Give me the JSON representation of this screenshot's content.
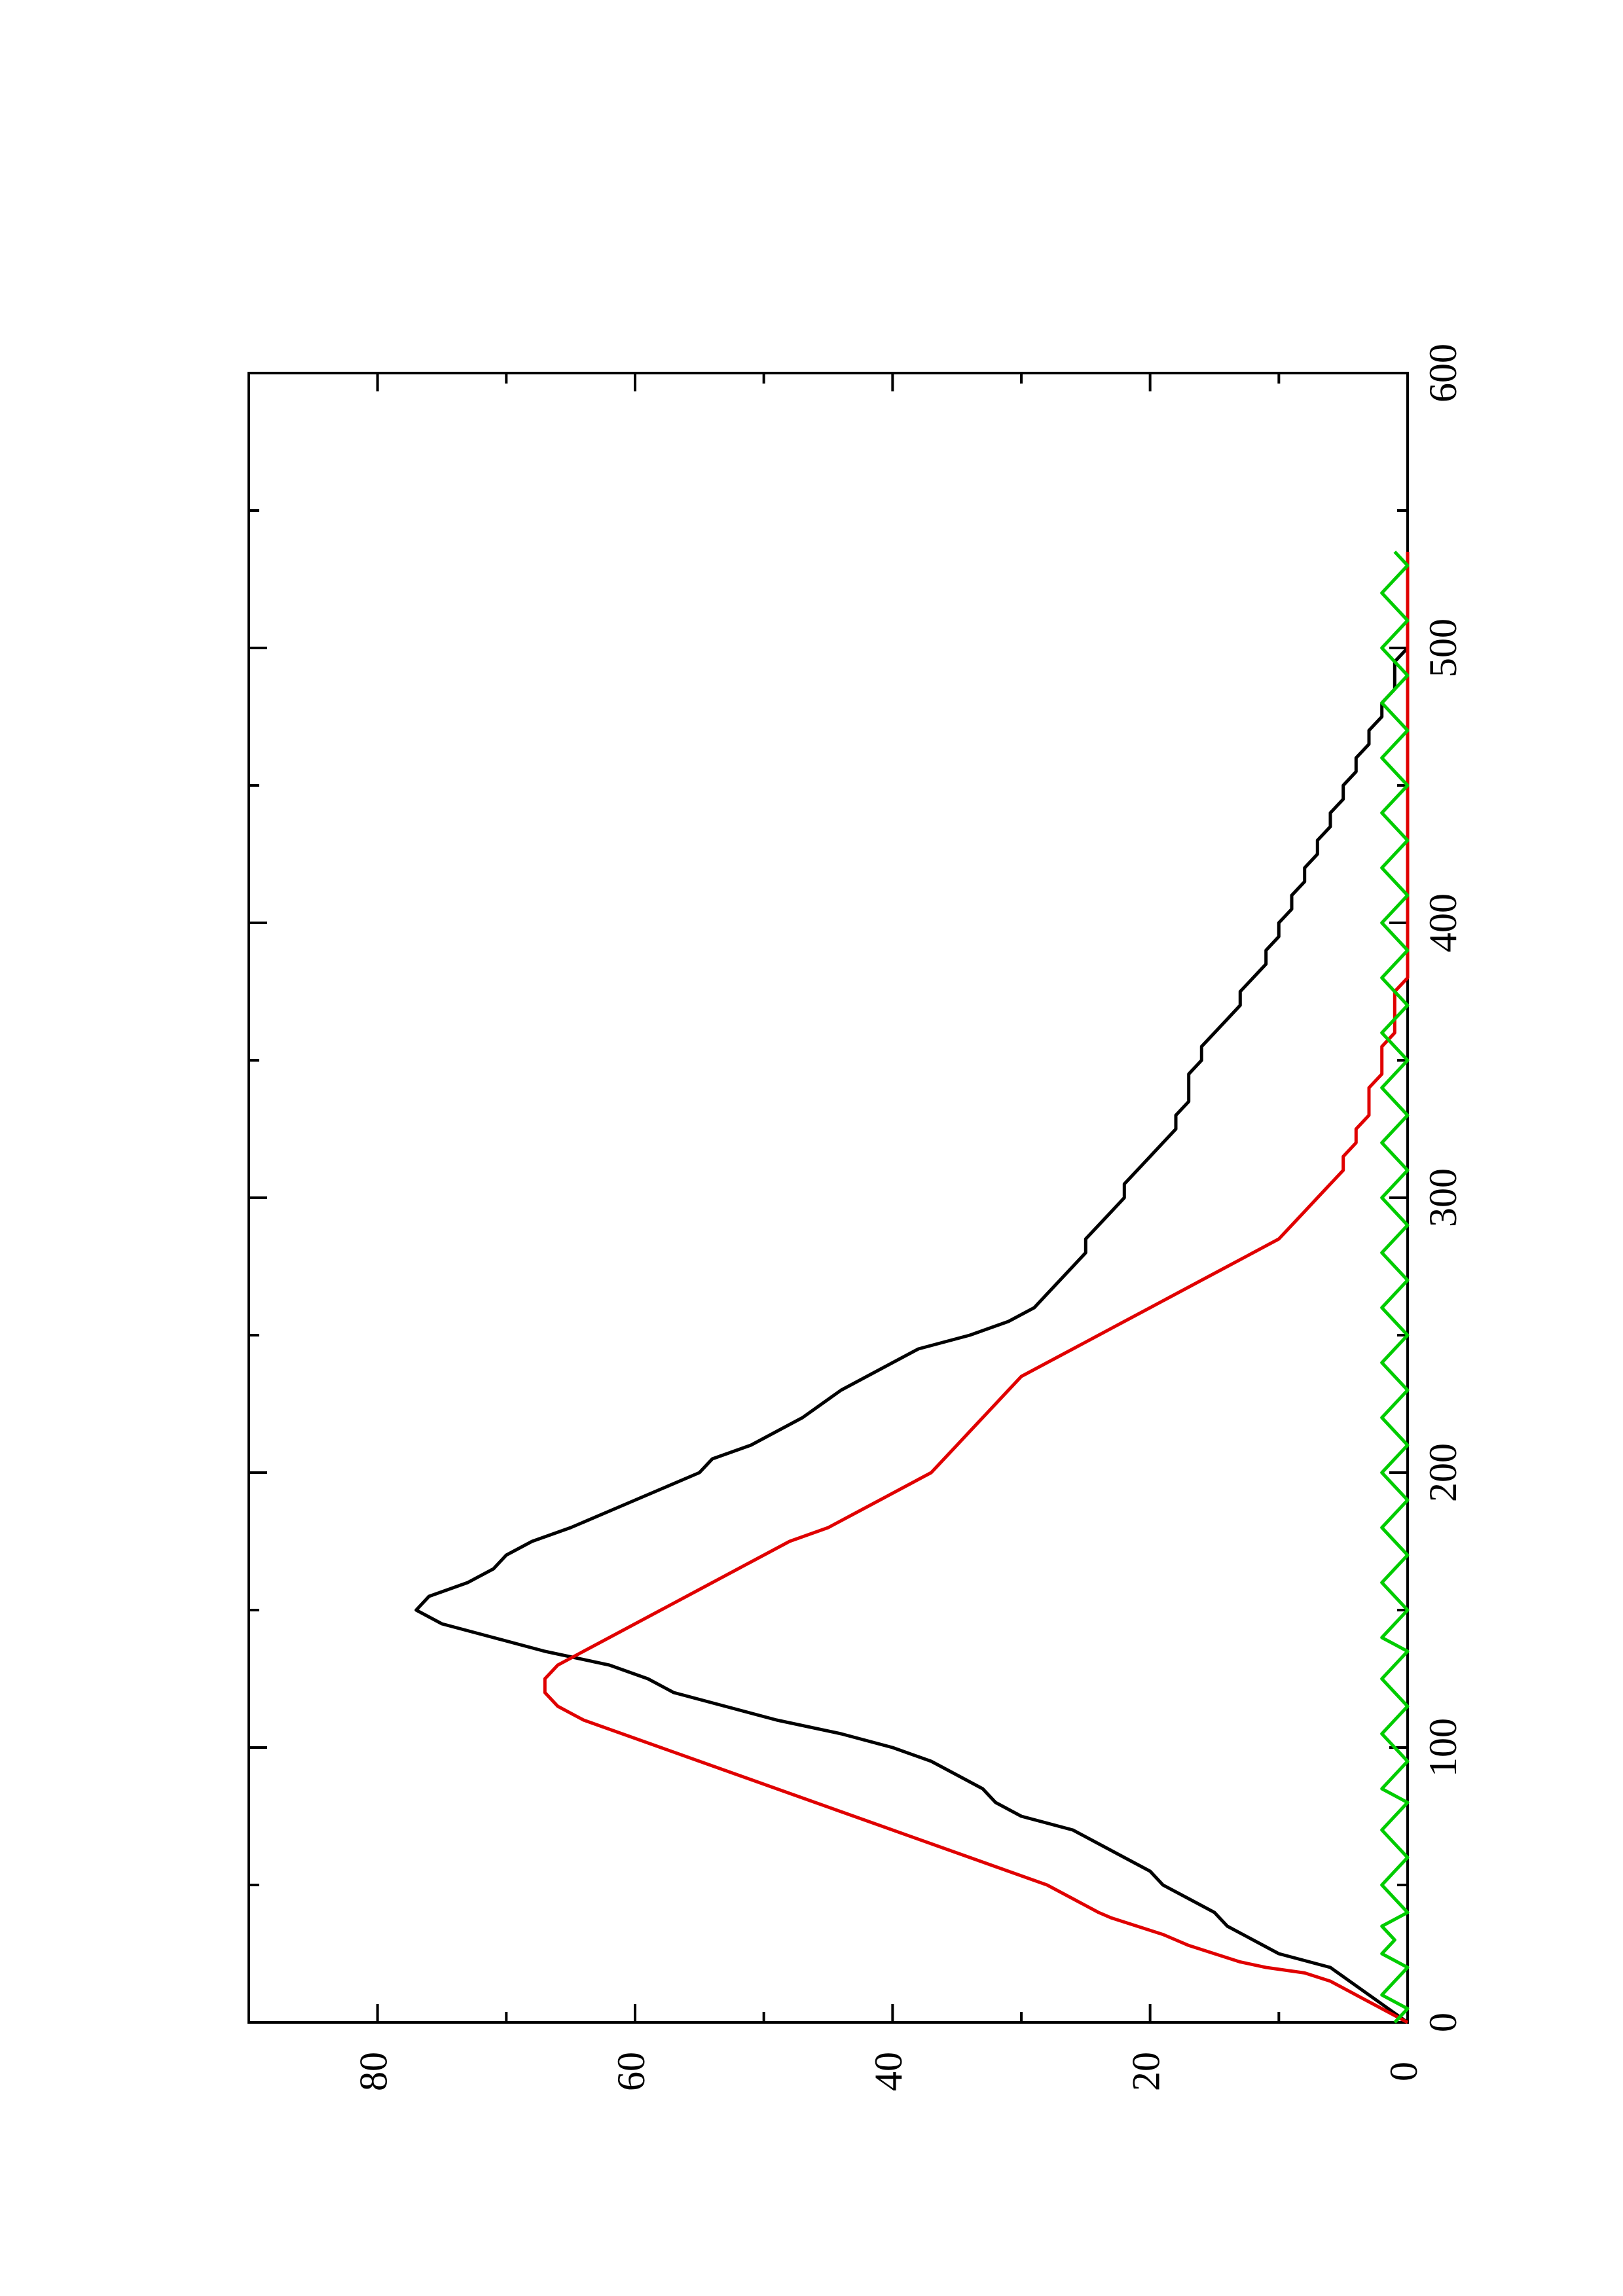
{
  "chart_data": {
    "type": "line",
    "orientation": "rotated-90-ccw",
    "title": "",
    "xlabel": "",
    "ylabel": "",
    "xlim": [
      0,
      600
    ],
    "ylim": [
      0,
      90
    ],
    "x_ticks": [
      0,
      100,
      200,
      300,
      400,
      500,
      600
    ],
    "x_tick_labels": [
      "0",
      "100",
      "200",
      "300",
      "400",
      "500",
      "600"
    ],
    "x_minor_ticks": [
      50,
      150,
      250,
      350,
      450,
      550
    ],
    "y_ticks": [
      0,
      20,
      40,
      60,
      80
    ],
    "y_tick_labels": [
      "0",
      "20",
      "40",
      "60",
      "80"
    ],
    "y_minor_ticks": [
      10,
      30,
      50,
      70
    ],
    "grid": false,
    "legend": "none",
    "series": [
      {
        "color": "#000000",
        "points": [
          [
            0,
            0
          ],
          [
            10,
            3
          ],
          [
            20,
            6
          ],
          [
            25,
            10
          ],
          [
            30,
            12
          ],
          [
            35,
            14
          ],
          [
            40,
            15
          ],
          [
            45,
            17
          ],
          [
            50,
            19
          ],
          [
            55,
            20
          ],
          [
            60,
            22
          ],
          [
            65,
            24
          ],
          [
            70,
            26
          ],
          [
            75,
            30
          ],
          [
            80,
            32
          ],
          [
            85,
            33
          ],
          [
            90,
            35
          ],
          [
            95,
            37
          ],
          [
            100,
            40
          ],
          [
            105,
            44
          ],
          [
            110,
            49
          ],
          [
            115,
            53
          ],
          [
            120,
            57
          ],
          [
            125,
            59
          ],
          [
            130,
            62
          ],
          [
            135,
            67
          ],
          [
            140,
            71
          ],
          [
            145,
            75
          ],
          [
            150,
            77
          ],
          [
            155,
            76
          ],
          [
            160,
            73
          ],
          [
            165,
            71
          ],
          [
            170,
            70
          ],
          [
            175,
            68
          ],
          [
            180,
            65
          ],
          [
            190,
            60
          ],
          [
            200,
            55
          ],
          [
            205,
            54
          ],
          [
            210,
            51
          ],
          [
            215,
            49
          ],
          [
            220,
            47
          ],
          [
            230,
            44
          ],
          [
            240,
            40
          ],
          [
            245,
            38
          ],
          [
            250,
            34
          ],
          [
            255,
            31
          ],
          [
            260,
            29
          ],
          [
            265,
            28
          ],
          [
            270,
            27
          ],
          [
            275,
            26
          ],
          [
            280,
            25
          ],
          [
            285,
            25
          ],
          [
            290,
            24
          ],
          [
            295,
            23
          ],
          [
            300,
            22
          ],
          [
            305,
            22
          ],
          [
            310,
            21
          ],
          [
            315,
            20
          ],
          [
            320,
            19
          ],
          [
            325,
            18
          ],
          [
            330,
            18
          ],
          [
            335,
            17
          ],
          [
            340,
            17
          ],
          [
            345,
            17
          ],
          [
            350,
            16
          ],
          [
            355,
            16
          ],
          [
            360,
            15
          ],
          [
            365,
            14
          ],
          [
            370,
            13
          ],
          [
            375,
            13
          ],
          [
            380,
            12
          ],
          [
            385,
            11
          ],
          [
            390,
            11
          ],
          [
            395,
            10
          ],
          [
            400,
            10
          ],
          [
            405,
            9
          ],
          [
            410,
            9
          ],
          [
            415,
            8
          ],
          [
            420,
            8
          ],
          [
            425,
            7
          ],
          [
            430,
            7
          ],
          [
            435,
            6
          ],
          [
            440,
            6
          ],
          [
            445,
            5
          ],
          [
            450,
            5
          ],
          [
            455,
            4
          ],
          [
            460,
            4
          ],
          [
            465,
            3
          ],
          [
            470,
            3
          ],
          [
            475,
            2
          ],
          [
            480,
            2
          ],
          [
            485,
            1
          ],
          [
            490,
            1
          ],
          [
            495,
            1
          ],
          [
            500,
            0
          ],
          [
            505,
            0
          ],
          [
            510,
            0
          ],
          [
            515,
            0
          ],
          [
            520,
            0
          ],
          [
            525,
            0
          ],
          [
            530,
            0
          ],
          [
            535,
            0
          ]
        ]
      },
      {
        "color": "#e00000",
        "points": [
          [
            0,
            0
          ],
          [
            5,
            2
          ],
          [
            10,
            4
          ],
          [
            15,
            6
          ],
          [
            18,
            8
          ],
          [
            20,
            11
          ],
          [
            22,
            13
          ],
          [
            25,
            15
          ],
          [
            28,
            17
          ],
          [
            30,
            18
          ],
          [
            32,
            19
          ],
          [
            35,
            21
          ],
          [
            38,
            23
          ],
          [
            40,
            24
          ],
          [
            45,
            26
          ],
          [
            50,
            28
          ],
          [
            55,
            31
          ],
          [
            60,
            34
          ],
          [
            65,
            37
          ],
          [
            70,
            40
          ],
          [
            75,
            43
          ],
          [
            80,
            46
          ],
          [
            85,
            49
          ],
          [
            90,
            52
          ],
          [
            95,
            55
          ],
          [
            100,
            58
          ],
          [
            105,
            61
          ],
          [
            110,
            64
          ],
          [
            115,
            66
          ],
          [
            120,
            67
          ],
          [
            125,
            67
          ],
          [
            130,
            66
          ],
          [
            135,
            64
          ],
          [
            140,
            62
          ],
          [
            145,
            60
          ],
          [
            150,
            58
          ],
          [
            155,
            56
          ],
          [
            160,
            54
          ],
          [
            165,
            52
          ],
          [
            170,
            50
          ],
          [
            175,
            48
          ],
          [
            180,
            45
          ],
          [
            185,
            43
          ],
          [
            190,
            41
          ],
          [
            195,
            39
          ],
          [
            200,
            37
          ],
          [
            205,
            36
          ],
          [
            210,
            35
          ],
          [
            215,
            34
          ],
          [
            220,
            33
          ],
          [
            225,
            32
          ],
          [
            230,
            31
          ],
          [
            235,
            30
          ],
          [
            240,
            28
          ],
          [
            245,
            26
          ],
          [
            250,
            24
          ],
          [
            255,
            22
          ],
          [
            260,
            20
          ],
          [
            265,
            18
          ],
          [
            270,
            16
          ],
          [
            275,
            14
          ],
          [
            280,
            12
          ],
          [
            285,
            10
          ],
          [
            290,
            9
          ],
          [
            295,
            8
          ],
          [
            300,
            7
          ],
          [
            305,
            6
          ],
          [
            310,
            5
          ],
          [
            315,
            5
          ],
          [
            320,
            4
          ],
          [
            325,
            4
          ],
          [
            330,
            3
          ],
          [
            335,
            3
          ],
          [
            340,
            3
          ],
          [
            345,
            2
          ],
          [
            350,
            2
          ],
          [
            355,
            2
          ],
          [
            360,
            1
          ],
          [
            365,
            1
          ],
          [
            370,
            1
          ],
          [
            375,
            1
          ],
          [
            380,
            0
          ],
          [
            385,
            0
          ],
          [
            390,
            0
          ],
          [
            395,
            0
          ],
          [
            400,
            0
          ],
          [
            405,
            0
          ],
          [
            410,
            0
          ],
          [
            415,
            0
          ],
          [
            420,
            0
          ],
          [
            425,
            0
          ],
          [
            430,
            0
          ],
          [
            435,
            0
          ],
          [
            440,
            0
          ],
          [
            445,
            0
          ],
          [
            450,
            0
          ],
          [
            455,
            0
          ],
          [
            460,
            0
          ],
          [
            465,
            0
          ],
          [
            470,
            0
          ],
          [
            475,
            0
          ],
          [
            480,
            0
          ],
          [
            485,
            0
          ],
          [
            490,
            0
          ],
          [
            495,
            0
          ],
          [
            500,
            0
          ],
          [
            505,
            0
          ],
          [
            510,
            0
          ],
          [
            515,
            0
          ],
          [
            520,
            0
          ],
          [
            525,
            0
          ],
          [
            530,
            0
          ],
          [
            535,
            0
          ]
        ]
      },
      {
        "color": "#00cc00",
        "points": [
          [
            0,
            1
          ],
          [
            5,
            0
          ],
          [
            10,
            2
          ],
          [
            15,
            1
          ],
          [
            20,
            0
          ],
          [
            25,
            2
          ],
          [
            30,
            1
          ],
          [
            35,
            2
          ],
          [
            40,
            0
          ],
          [
            45,
            1
          ],
          [
            50,
            2
          ],
          [
            55,
            1
          ],
          [
            60,
            0
          ],
          [
            65,
            1
          ],
          [
            70,
            2
          ],
          [
            75,
            1
          ],
          [
            80,
            0
          ],
          [
            85,
            2
          ],
          [
            90,
            1
          ],
          [
            95,
            0
          ],
          [
            100,
            1
          ],
          [
            105,
            2
          ],
          [
            110,
            1
          ],
          [
            115,
            0
          ],
          [
            120,
            1
          ],
          [
            125,
            2
          ],
          [
            130,
            1
          ],
          [
            135,
            0
          ],
          [
            140,
            2
          ],
          [
            145,
            1
          ],
          [
            150,
            0
          ],
          [
            155,
            1
          ],
          [
            160,
            2
          ],
          [
            165,
            1
          ],
          [
            170,
            0
          ],
          [
            175,
            1
          ],
          [
            180,
            2
          ],
          [
            185,
            1
          ],
          [
            190,
            0
          ],
          [
            195,
            1
          ],
          [
            200,
            2
          ],
          [
            205,
            1
          ],
          [
            210,
            0
          ],
          [
            215,
            1
          ],
          [
            220,
            2
          ],
          [
            225,
            1
          ],
          [
            230,
            0
          ],
          [
            235,
            1
          ],
          [
            240,
            2
          ],
          [
            245,
            1
          ],
          [
            250,
            0
          ],
          [
            255,
            1
          ],
          [
            260,
            2
          ],
          [
            265,
            1
          ],
          [
            270,
            0
          ],
          [
            275,
            1
          ],
          [
            280,
            2
          ],
          [
            285,
            1
          ],
          [
            290,
            0
          ],
          [
            295,
            1
          ],
          [
            300,
            2
          ],
          [
            305,
            1
          ],
          [
            310,
            0
          ],
          [
            315,
            1
          ],
          [
            320,
            2
          ],
          [
            325,
            1
          ],
          [
            330,
            0
          ],
          [
            335,
            1
          ],
          [
            340,
            2
          ],
          [
            345,
            1
          ],
          [
            350,
            0
          ],
          [
            355,
            1
          ],
          [
            360,
            2
          ],
          [
            365,
            1
          ],
          [
            370,
            0
          ],
          [
            375,
            1
          ],
          [
            380,
            2
          ],
          [
            385,
            1
          ],
          [
            390,
            0
          ],
          [
            395,
            1
          ],
          [
            400,
            2
          ],
          [
            405,
            1
          ],
          [
            410,
            0
          ],
          [
            415,
            1
          ],
          [
            420,
            2
          ],
          [
            425,
            1
          ],
          [
            430,
            0
          ],
          [
            435,
            1
          ],
          [
            440,
            2
          ],
          [
            445,
            1
          ],
          [
            450,
            0
          ],
          [
            455,
            1
          ],
          [
            460,
            2
          ],
          [
            465,
            1
          ],
          [
            470,
            0
          ],
          [
            475,
            1
          ],
          [
            480,
            2
          ],
          [
            485,
            1
          ],
          [
            490,
            0
          ],
          [
            495,
            1
          ],
          [
            500,
            2
          ],
          [
            505,
            1
          ],
          [
            510,
            0
          ],
          [
            515,
            1
          ],
          [
            520,
            2
          ],
          [
            525,
            1
          ],
          [
            530,
            0
          ],
          [
            535,
            1
          ]
        ]
      }
    ]
  }
}
